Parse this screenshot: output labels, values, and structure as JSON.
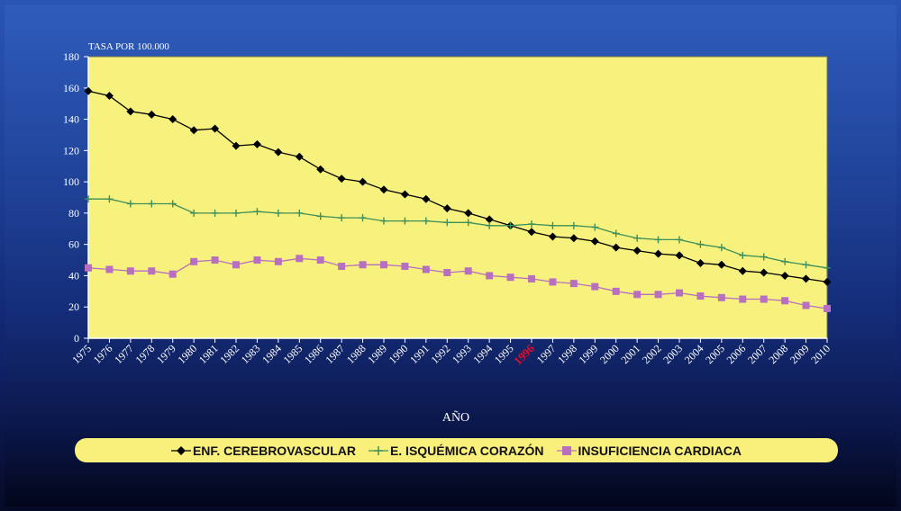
{
  "chart_data": {
    "type": "line",
    "title": "",
    "ylabel": "TASA POR 100.000",
    "xlabel": "AÑO",
    "ylim": [
      0,
      180
    ],
    "yticks": [
      0,
      20,
      40,
      60,
      80,
      100,
      120,
      140,
      160,
      180
    ],
    "highlight_category": "1996",
    "highlight_color": "#e0102a",
    "plot_background": "#f7f27e",
    "categories": [
      "1975",
      "1976",
      "1977",
      "1978",
      "1979",
      "1980",
      "1981",
      "1982",
      "1983",
      "1984",
      "1985",
      "1986",
      "1987",
      "1988",
      "1989",
      "1990",
      "1991",
      "1992",
      "1993",
      "1994",
      "1995",
      "1996",
      "1997",
      "1998",
      "1999",
      "2000",
      "2001",
      "2002",
      "2003",
      "2004",
      "2005",
      "2006",
      "2007",
      "2008",
      "2009",
      "2010"
    ],
    "series": [
      {
        "name": "ENF. CEREBROVASCULAR",
        "color": "#000000",
        "marker": "diamond",
        "values": [
          158,
          155,
          145,
          143,
          140,
          133,
          134,
          123,
          124,
          119,
          116,
          108,
          102,
          100,
          95,
          92,
          89,
          83,
          80,
          76,
          72,
          68,
          65,
          64,
          62,
          58,
          56,
          54,
          53,
          48,
          47,
          43,
          42,
          40,
          38,
          36
        ]
      },
      {
        "name": "E. ISQUÉMICA CORAZÓN",
        "color": "#3f8f5a",
        "marker": "plus",
        "values": [
          89,
          89,
          86,
          86,
          86,
          80,
          80,
          80,
          81,
          80,
          80,
          78,
          77,
          77,
          75,
          75,
          75,
          74,
          74,
          72,
          72,
          73,
          72,
          72,
          71,
          67,
          64,
          63,
          63,
          60,
          58,
          53,
          52,
          49,
          47,
          45
        ]
      },
      {
        "name": "INSUFICIENCIA CARDIACA",
        "color": "#b86fc0",
        "marker": "square",
        "values": [
          45,
          44,
          43,
          43,
          41,
          49,
          50,
          47,
          50,
          49,
          51,
          50,
          46,
          47,
          47,
          46,
          44,
          42,
          43,
          40,
          39,
          38,
          36,
          35,
          33,
          30,
          28,
          28,
          29,
          27,
          26,
          25,
          25,
          24,
          21,
          19
        ]
      }
    ]
  }
}
